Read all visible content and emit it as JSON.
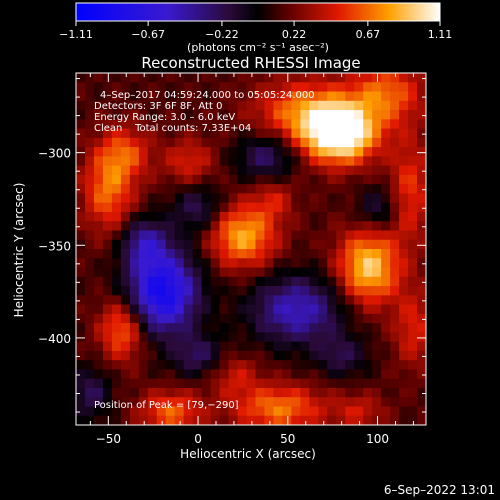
{
  "chart_data": {
    "type": "heatmap",
    "title": "Reconstructed RHESSI Image",
    "xlabel": "Heliocentric X (arcsec)",
    "ylabel": "Heliocentric Y (arcsec)",
    "xlim": [
      -68,
      127
    ],
    "ylim": [
      -447,
      -257
    ],
    "x_ticks": [
      -50,
      0,
      50,
      100
    ],
    "x_tick_labels": [
      "−50",
      "0",
      "50",
      "100"
    ],
    "y_ticks": [
      -300,
      -350,
      -400
    ],
    "y_tick_labels": [
      "−300",
      "−350",
      "−400"
    ],
    "colorbar": {
      "min": -1.11,
      "max": 1.11,
      "ticks": [
        -1.11,
        -0.67,
        -0.22,
        0.22,
        0.67,
        1.11
      ],
      "tick_labels": [
        "−1.11",
        "−0.67",
        "−0.22",
        "0.22",
        "0.67",
        "1.11"
      ],
      "units": "(photons cm⁻² s⁻¹ asec⁻²)"
    },
    "annotations": [
      "4–Sep–2017 04:59:24.000 to 05:05:24.000",
      "Detectors: 3F 6F 8F, Att 0",
      "Energy Range: 3.0 – 6.0 keV",
      "Clean    Total counts: 7.33E+04"
    ],
    "peak_label": "Position of Peak = [79,−290]",
    "peak": [
      79,
      -290
    ],
    "sources": [
      {
        "x": 79,
        "y": -290,
        "amp": 1.0,
        "sx": 14,
        "sy": 11
      },
      {
        "x": 60,
        "y": -278,
        "amp": 0.5,
        "sx": 20,
        "sy": 12
      },
      {
        "x": 105,
        "y": -268,
        "amp": 0.45,
        "sx": 14,
        "sy": 12
      },
      {
        "x": 118,
        "y": -320,
        "amp": 0.35,
        "sx": 8,
        "sy": 20
      },
      {
        "x": -50,
        "y": -320,
        "amp": 0.48,
        "sx": 10,
        "sy": 16
      },
      {
        "x": -40,
        "y": -300,
        "amp": 0.35,
        "sx": 10,
        "sy": 10
      },
      {
        "x": -5,
        "y": -305,
        "amp": 0.3,
        "sx": 10,
        "sy": 9
      },
      {
        "x": 25,
        "y": -345,
        "amp": 0.62,
        "sx": 13,
        "sy": 12
      },
      {
        "x": 42,
        "y": -325,
        "amp": 0.25,
        "sx": 8,
        "sy": 8
      },
      {
        "x": 95,
        "y": -362,
        "amp": 0.72,
        "sx": 12,
        "sy": 14
      },
      {
        "x": -42,
        "y": -395,
        "amp": 0.52,
        "sx": 9,
        "sy": 12
      },
      {
        "x": -15,
        "y": -440,
        "amp": 0.45,
        "sx": 12,
        "sy": 8
      },
      {
        "x": 20,
        "y": -420,
        "amp": 0.25,
        "sx": 10,
        "sy": 8
      },
      {
        "x": 45,
        "y": -438,
        "amp": 0.5,
        "sx": 18,
        "sy": 9
      },
      {
        "x": 90,
        "y": -440,
        "amp": 0.25,
        "sx": 10,
        "sy": 7
      },
      {
        "x": 120,
        "y": -395,
        "amp": 0.3,
        "sx": 8,
        "sy": 15
      },
      {
        "x": -20,
        "y": -375,
        "amp": -0.95,
        "sx": 14,
        "sy": 16
      },
      {
        "x": -30,
        "y": -348,
        "amp": -0.45,
        "sx": 9,
        "sy": 9
      },
      {
        "x": 0,
        "y": -330,
        "amp": -0.35,
        "sx": 10,
        "sy": 9
      },
      {
        "x": 38,
        "y": -302,
        "amp": -0.4,
        "sx": 12,
        "sy": 9
      },
      {
        "x": 55,
        "y": -385,
        "amp": -0.6,
        "sx": 18,
        "sy": 13
      },
      {
        "x": 0,
        "y": -410,
        "amp": -0.35,
        "sx": 10,
        "sy": 8
      },
      {
        "x": 80,
        "y": -410,
        "amp": -0.3,
        "sx": 10,
        "sy": 8
      },
      {
        "x": -60,
        "y": -430,
        "amp": -0.35,
        "sx": 8,
        "sy": 10
      },
      {
        "x": 100,
        "y": -330,
        "amp": -0.3,
        "sx": 8,
        "sy": 8
      }
    ]
  },
  "timestamp": "6–Sep–2022 13:01"
}
